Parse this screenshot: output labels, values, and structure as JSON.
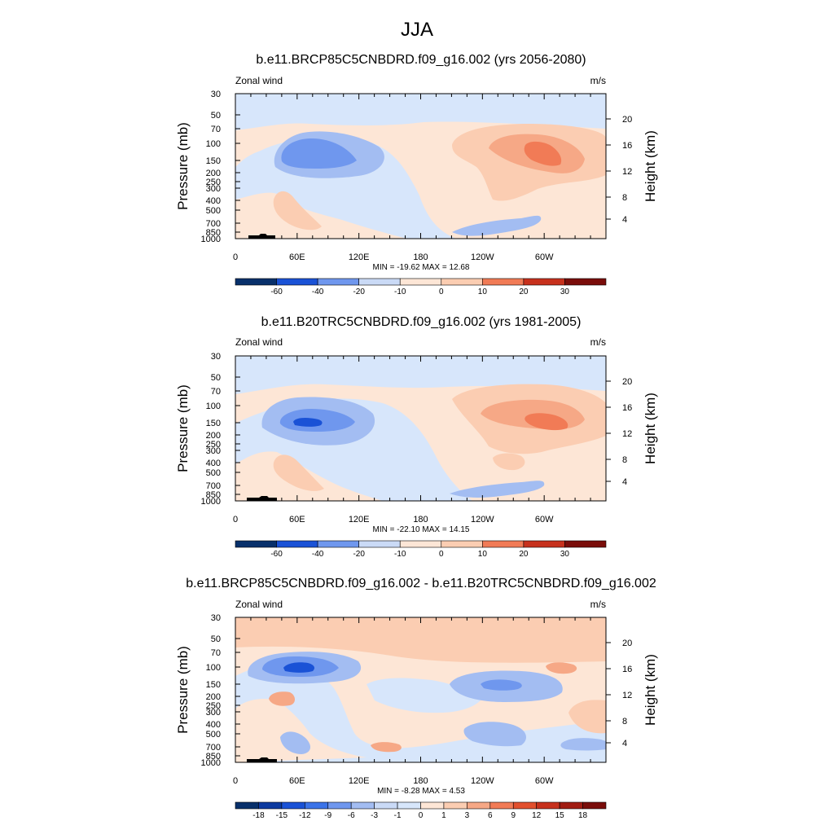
{
  "figure": {
    "title": "JJA"
  },
  "chart_data": [
    {
      "type": "heatmap",
      "title": "b.e11.BRCP85C5CNBDRD.f09_g16.002 (yrs 2056-2080)",
      "left_label": "Zonal wind",
      "right_label": "m/s",
      "ylabel": "Pressure (mb)",
      "ylabel_right": "Height (km)",
      "pressure_ticks": [
        "30",
        "50",
        "70",
        "100",
        "150",
        "200",
        "250",
        "300",
        "400",
        "500",
        "700",
        "850",
        "1000"
      ],
      "height_ticks": [
        "20",
        "16",
        "12",
        "8",
        "4"
      ],
      "x_ticks": [
        "0",
        "60E",
        "120E",
        "180",
        "120W",
        "60W"
      ],
      "stats": "MIN = -19.62  MAX =  12.68",
      "colorbar_labels": [
        "-60",
        "-40",
        "-20",
        "-10",
        "0",
        "10",
        "20",
        "30"
      ]
    },
    {
      "type": "heatmap",
      "title": "b.e11.B20TRC5CNBDRD.f09_g16.002 (yrs 1981-2005)",
      "left_label": "Zonal wind",
      "right_label": "m/s",
      "ylabel": "Pressure (mb)",
      "ylabel_right": "Height (km)",
      "pressure_ticks": [
        "30",
        "50",
        "70",
        "100",
        "150",
        "200",
        "250",
        "300",
        "400",
        "500",
        "700",
        "850",
        "1000"
      ],
      "height_ticks": [
        "20",
        "16",
        "12",
        "8",
        "4"
      ],
      "x_ticks": [
        "0",
        "60E",
        "120E",
        "180",
        "120W",
        "60W"
      ],
      "stats": "MIN = -22.10  MAX =  14.15",
      "colorbar_labels": [
        "-60",
        "-40",
        "-20",
        "-10",
        "0",
        "10",
        "20",
        "30"
      ]
    },
    {
      "type": "heatmap",
      "title": "b.e11.BRCP85C5CNBDRD.f09_g16.002 - b.e11.B20TRC5CNBDRD.f09_g16.002",
      "left_label": "Zonal wind",
      "right_label": "m/s",
      "ylabel": "Pressure (mb)",
      "ylabel_right": "Height (km)",
      "pressure_ticks": [
        "30",
        "50",
        "70",
        "100",
        "150",
        "200",
        "250",
        "300",
        "400",
        "500",
        "700",
        "850",
        "1000"
      ],
      "height_ticks": [
        "20",
        "16",
        "12",
        "8",
        "4"
      ],
      "x_ticks": [
        "0",
        "60E",
        "120E",
        "180",
        "120W",
        "60W"
      ],
      "stats": "MIN = -8.28  MAX =   4.53",
      "colorbar_labels": [
        "-18",
        "-15",
        "-12",
        "-9",
        "-6",
        "-3",
        "-1",
        "0",
        "1",
        "3",
        "6",
        "9",
        "12",
        "15",
        "18"
      ]
    }
  ],
  "colors": {
    "palette": [
      "#08306b",
      "#0d3aa0",
      "#1a52d6",
      "#3b73e8",
      "#6f97ee",
      "#a3bdf2",
      "#cadaf6",
      "#d7e6fb",
      "#fde6d6",
      "#fbcdb2",
      "#f6a886",
      "#f17b56",
      "#e2502e",
      "#c7311d",
      "#a11c12",
      "#7a0d0a"
    ],
    "terrain": "#000000"
  }
}
